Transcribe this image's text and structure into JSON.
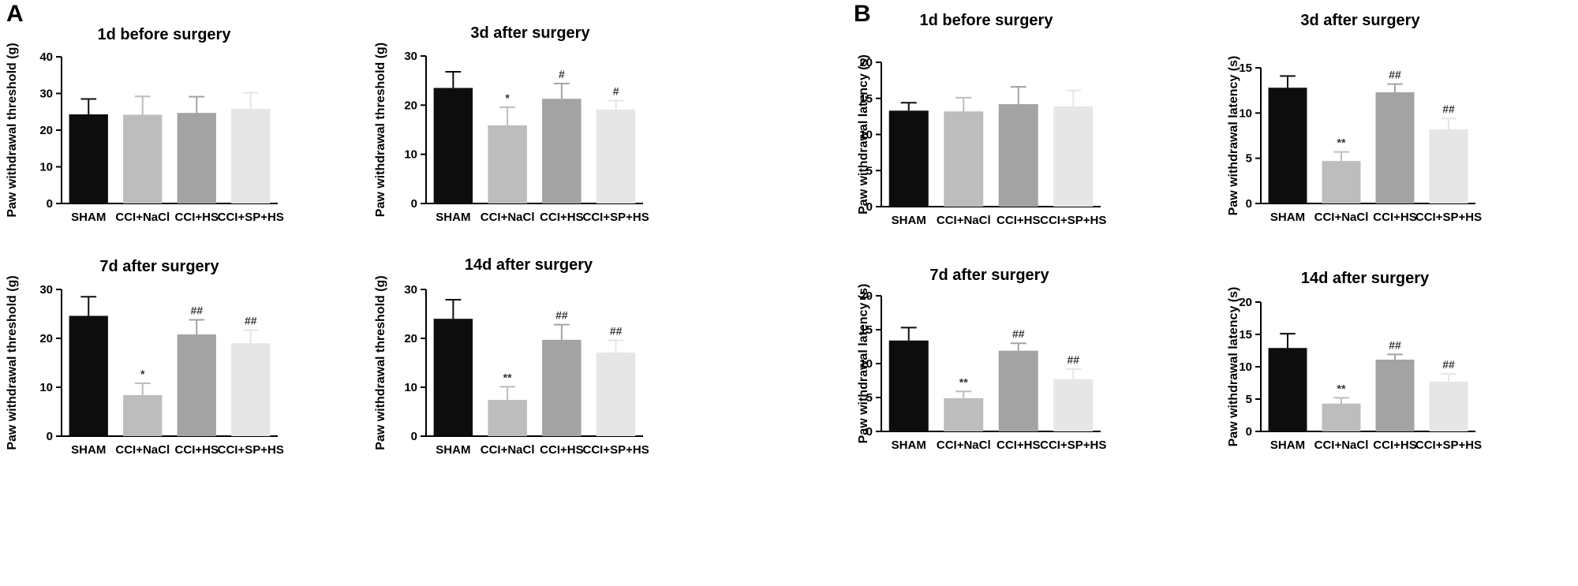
{
  "panels": [
    {
      "label": "A"
    },
    {
      "label": "B"
    }
  ],
  "chart_data": [
    {
      "type": "bar",
      "panel": "A",
      "title": "1d before surgery",
      "ylabel": "Paw withdrawal threshold (g)",
      "xlabel": "",
      "categories": [
        "SHAM",
        "CCI+NaCl",
        "CCI+HS",
        "CCI+SP+HS"
      ],
      "values": [
        24.3,
        24.2,
        24.7,
        25.8
      ],
      "errors": [
        4.2,
        5.0,
        4.4,
        4.4
      ],
      "significance": [
        "",
        "",
        "",
        ""
      ],
      "ylim": [
        0,
        40
      ],
      "yticks": [
        "0",
        "10",
        "20",
        "30",
        "40"
      ],
      "colors": [
        "#0d0d0d",
        "#bdbdbd",
        "#a3a3a3",
        "#e6e6e6"
      ]
    },
    {
      "type": "bar",
      "panel": "A",
      "title": "3d after surgery",
      "ylabel": "Paw withdrawal threshold (g)",
      "xlabel": "",
      "categories": [
        "SHAM",
        "CCI+NaCl",
        "CCI+HS",
        "CCI+SP+HS"
      ],
      "values": [
        23.5,
        15.9,
        21.3,
        19.1
      ],
      "errors": [
        3.3,
        3.7,
        3.1,
        1.8
      ],
      "significance": [
        "",
        "*",
        "#",
        "#"
      ],
      "ylim": [
        0,
        30
      ],
      "yticks": [
        "0",
        "10",
        "20",
        "30"
      ],
      "colors": [
        "#0d0d0d",
        "#bdbdbd",
        "#a3a3a3",
        "#e6e6e6"
      ]
    },
    {
      "type": "bar",
      "panel": "A",
      "title": "7d after surgery",
      "ylabel": "Paw withdrawal threshold (g)",
      "xlabel": "",
      "categories": [
        "SHAM",
        "CCI+NaCl",
        "CCI+HS",
        "CCI+SP+HS"
      ],
      "values": [
        24.6,
        8.4,
        20.8,
        19.0
      ],
      "errors": [
        3.9,
        2.4,
        3.0,
        2.7
      ],
      "significance": [
        "",
        "*",
        "##",
        "##"
      ],
      "ylim": [
        0,
        30
      ],
      "yticks": [
        "0",
        "10",
        "20",
        "30"
      ],
      "colors": [
        "#0d0d0d",
        "#bdbdbd",
        "#a3a3a3",
        "#e6e6e6"
      ]
    },
    {
      "type": "bar",
      "panel": "A",
      "title": "14d after surgery",
      "ylabel": "Paw withdrawal threshold (g)",
      "xlabel": "",
      "categories": [
        "SHAM",
        "CCI+NaCl",
        "CCI+HS",
        "CCI+SP+HS"
      ],
      "values": [
        24.0,
        7.4,
        19.7,
        17.1
      ],
      "errors": [
        3.9,
        2.7,
        3.1,
        2.5
      ],
      "significance": [
        "",
        "**",
        "##",
        "##"
      ],
      "ylim": [
        0,
        30
      ],
      "yticks": [
        "0",
        "10",
        "20",
        "30"
      ],
      "colors": [
        "#0d0d0d",
        "#bdbdbd",
        "#a3a3a3",
        "#e6e6e6"
      ]
    },
    {
      "type": "bar",
      "panel": "B",
      "title": "1d before surgery",
      "ylabel": "Paw withdrawal latency (s)",
      "xlabel": "",
      "categories": [
        "SHAM",
        "CCI+NaCl",
        "CCI+HS",
        "CCI+SP+HS"
      ],
      "values": [
        13.3,
        13.2,
        14.2,
        13.9
      ],
      "errors": [
        1.1,
        1.9,
        2.4,
        2.2
      ],
      "significance": [
        "",
        "",
        "",
        ""
      ],
      "ylim": [
        0,
        20
      ],
      "yticks": [
        "0",
        "5",
        "10",
        "15",
        "20"
      ],
      "colors": [
        "#0d0d0d",
        "#bdbdbd",
        "#a3a3a3",
        "#e6e6e6"
      ]
    },
    {
      "type": "bar",
      "panel": "B",
      "title": "3d after surgery",
      "ylabel": "Paw withdrawal latency (s)",
      "xlabel": "",
      "categories": [
        "SHAM",
        "CCI+NaCl",
        "CCI+HS",
        "CCI+SP+HS"
      ],
      "values": [
        12.8,
        4.7,
        12.3,
        8.2
      ],
      "errors": [
        1.3,
        1.0,
        0.9,
        1.2
      ],
      "significance": [
        "",
        "**",
        "##",
        "##"
      ],
      "ylim": [
        0,
        15
      ],
      "yticks": [
        "0",
        "5",
        "10",
        "15"
      ],
      "colors": [
        "#0d0d0d",
        "#bdbdbd",
        "#a3a3a3",
        "#e6e6e6"
      ]
    },
    {
      "type": "bar",
      "panel": "B",
      "title": "7d after surgery",
      "ylabel": "Paw withdrawal latency (s)",
      "xlabel": "",
      "categories": [
        "SHAM",
        "CCI+NaCl",
        "CCI+HS",
        "CCI+SP+HS"
      ],
      "values": [
        13.4,
        4.9,
        11.9,
        7.7
      ],
      "errors": [
        1.9,
        1.0,
        1.1,
        1.5
      ],
      "significance": [
        "",
        "**",
        "##",
        "##"
      ],
      "ylim": [
        0,
        20
      ],
      "yticks": [
        "0",
        "5",
        "10",
        "15",
        "20"
      ],
      "colors": [
        "#0d0d0d",
        "#bdbdbd",
        "#a3a3a3",
        "#e6e6e6"
      ]
    },
    {
      "type": "bar",
      "panel": "B",
      "title": "14d after surgery",
      "ylabel": "Paw withdrawal latency (s)",
      "xlabel": "",
      "categories": [
        "SHAM",
        "CCI+NaCl",
        "CCI+HS",
        "CCI+SP+HS"
      ],
      "values": [
        12.9,
        4.3,
        11.1,
        7.7
      ],
      "errors": [
        2.2,
        0.9,
        0.8,
        1.2
      ],
      "significance": [
        "",
        "**",
        "##",
        "##"
      ],
      "ylim": [
        0,
        20
      ],
      "yticks": [
        "0",
        "5",
        "10",
        "15",
        "20"
      ],
      "colors": [
        "#0d0d0d",
        "#bdbdbd",
        "#a3a3a3",
        "#e6e6e6"
      ]
    }
  ]
}
